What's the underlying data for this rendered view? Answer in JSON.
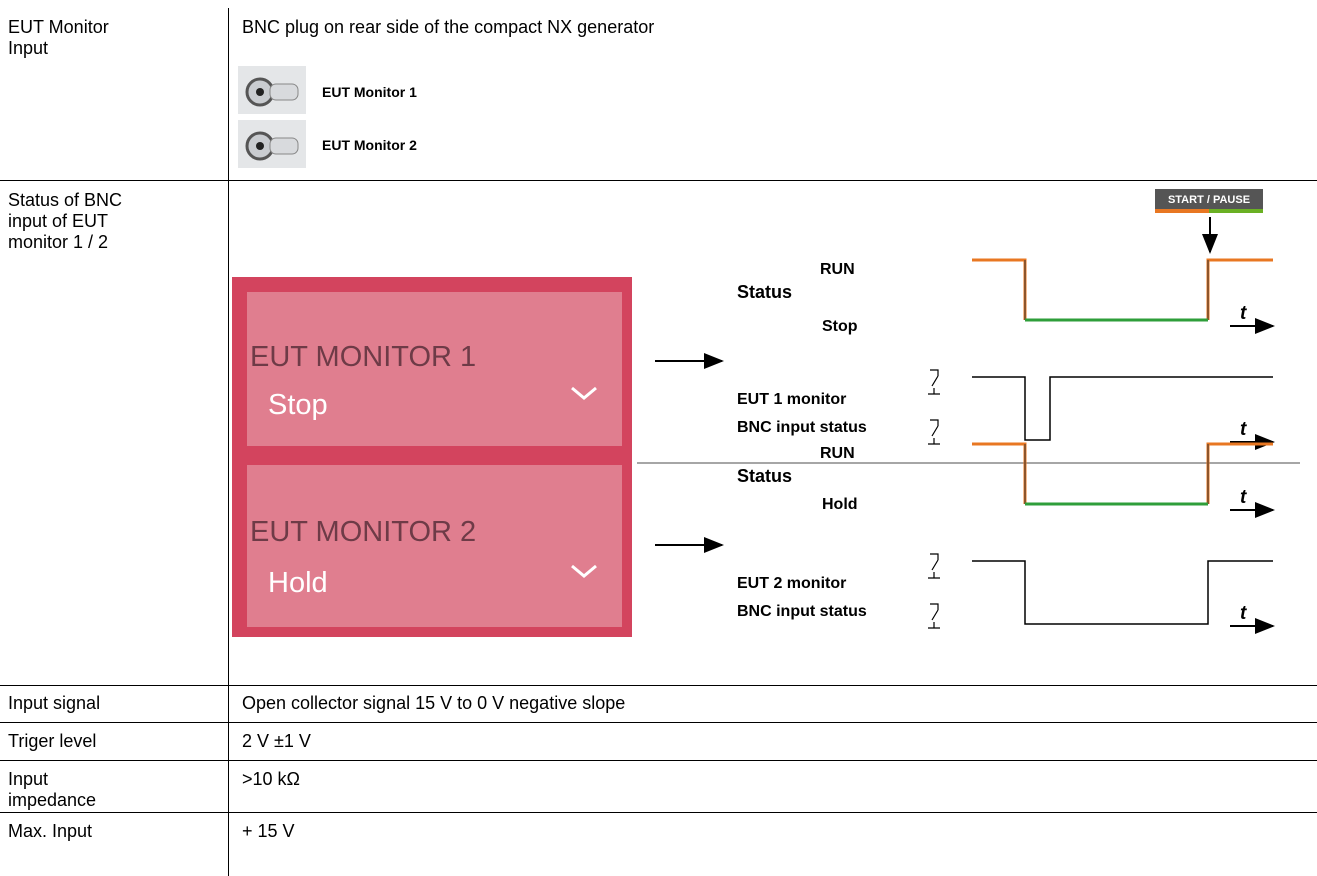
{
  "table": {
    "rows": [
      {
        "label": "EUT Monitor\nInput",
        "value": "BNC plug on rear side of the compact NX generator",
        "connectors": [
          "EUT Monitor 1",
          "EUT Monitor 2"
        ]
      },
      {
        "label": "Status of BNC\ninput of EUT\nmonitor 1 / 2"
      },
      {
        "label": "Input signal",
        "value": "Open collector signal 15 V to 0 V negative slope"
      },
      {
        "label": "Triger level",
        "value": "2 V ±1 V"
      },
      {
        "label": "Input\nimpedance",
        "value": ">10 kΩ"
      },
      {
        "label": "Max. Input",
        "value": "+ 15 V"
      }
    ]
  },
  "diagram": {
    "button": "START / PAUSE",
    "time_axis": "t",
    "panels": [
      {
        "title": "EUT MONITOR 1",
        "value": "Stop",
        "status": "Status",
        "high": "RUN",
        "low": "Stop",
        "signal": [
          "EUT 1 monitor",
          "BNC input status"
        ]
      },
      {
        "title": "EUT MONITOR 2",
        "value": "Hold",
        "status": "Status",
        "high": "RUN",
        "low": "Hold",
        "signal": [
          "EUT 2 monitor",
          "BNC input status"
        ]
      }
    ]
  }
}
